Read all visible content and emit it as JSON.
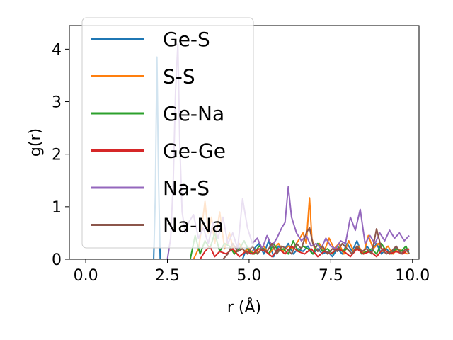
{
  "chart_data": {
    "type": "line",
    "xlabel": "r (Å)",
    "ylabel": "g(r)",
    "xlim": [
      -0.5,
      10.2
    ],
    "ylim": [
      0,
      4.45
    ],
    "xticks": [
      0.0,
      2.5,
      5.0,
      7.5,
      10.0
    ],
    "xtick_labels": [
      "0.0",
      "2.5",
      "5.0",
      "7.5",
      "10.0"
    ],
    "yticks": [
      0,
      1,
      2,
      3,
      4
    ],
    "ytick_labels": [
      "0",
      "1",
      "2",
      "3",
      "4"
    ],
    "grid": false,
    "legend_position": "upper-left",
    "series": [
      {
        "name": "Ge-S",
        "color": "#1f77b4",
        "x": [
          0,
          2.0,
          2.08,
          2.13,
          2.18,
          2.23,
          2.28,
          2.35,
          4.8,
          4.95,
          5.05,
          5.15,
          5.3,
          5.45,
          5.6,
          5.75,
          5.9,
          6.05,
          6.2,
          6.35,
          6.5,
          6.65,
          6.8,
          6.95,
          7.1,
          7.25,
          7.4,
          7.55,
          7.7,
          7.85,
          8.0,
          8.15,
          8.3,
          8.45,
          8.6,
          8.75,
          8.9,
          9.05,
          9.2,
          9.35,
          9.5,
          9.65,
          9.8,
          9.9
        ],
        "y": [
          0,
          0,
          0,
          1.2,
          3.85,
          1.5,
          0,
          0,
          0,
          0.25,
          0.1,
          0.2,
          0.3,
          0.1,
          0.35,
          0.05,
          0.25,
          0.15,
          0.3,
          0.1,
          0.2,
          0.15,
          0.25,
          0.1,
          0.2,
          0.1,
          0.15,
          0.05,
          0.2,
          0.1,
          0.3,
          0.15,
          0.35,
          0.1,
          0.25,
          0.15,
          0.3,
          0.1,
          0.2,
          0.1,
          0.25,
          0.1,
          0.2,
          0.15
        ]
      },
      {
        "name": "S-S",
        "color": "#ff7f0e",
        "x": [
          0,
          3.3,
          3.45,
          3.55,
          3.65,
          3.75,
          3.85,
          3.95,
          4.1,
          4.25,
          4.4,
          4.55,
          4.7,
          4.85,
          5.0,
          5.15,
          5.3,
          5.45,
          5.6,
          5.75,
          5.9,
          6.05,
          6.2,
          6.35,
          6.5,
          6.65,
          6.75,
          6.85,
          6.92,
          7.0,
          7.15,
          7.3,
          7.45,
          7.6,
          7.75,
          7.9,
          8.05,
          8.2,
          8.35,
          8.5,
          8.65,
          8.8,
          8.95,
          9.1,
          9.25,
          9.4,
          9.55,
          9.7,
          9.85
        ],
        "y": [
          0,
          0,
          0.2,
          0.6,
          1.1,
          0.5,
          0.8,
          0.3,
          0.9,
          0.2,
          0.5,
          0.1,
          0.3,
          0.15,
          0.2,
          0.1,
          0.15,
          0.25,
          0.1,
          0.2,
          0.3,
          0.15,
          0.25,
          0.2,
          0.35,
          0.5,
          0.3,
          1.17,
          0.4,
          0.2,
          0.3,
          0.15,
          0.4,
          0.2,
          0.3,
          0.1,
          0.35,
          0.15,
          0.25,
          0.1,
          0.45,
          0.2,
          0.3,
          0.15,
          0.25,
          0.1,
          0.2,
          0.15,
          0.1
        ]
      },
      {
        "name": "Ge-Na",
        "color": "#2ca02c",
        "x": [
          0,
          3.2,
          3.35,
          3.5,
          3.65,
          3.8,
          3.95,
          4.1,
          4.25,
          4.4,
          4.55,
          4.7,
          4.85,
          5.0,
          5.15,
          5.3,
          5.45,
          5.6,
          5.75,
          5.9,
          6.05,
          6.2,
          6.35,
          6.5,
          6.65,
          6.8,
          6.95,
          7.1,
          7.25,
          7.4,
          7.55,
          7.7,
          7.85,
          8.0,
          8.15,
          8.3,
          8.45,
          8.6,
          8.75,
          8.9,
          9.05,
          9.2,
          9.35,
          9.5,
          9.65,
          9.8,
          9.9
        ],
        "y": [
          0,
          0,
          0.45,
          0.1,
          0.35,
          0.2,
          0.5,
          0.15,
          0.3,
          0.25,
          0.1,
          0.2,
          0.35,
          0.15,
          0.1,
          0.25,
          0.2,
          0.1,
          0.3,
          0.15,
          0.2,
          0.1,
          0.35,
          0.15,
          0.25,
          0.2,
          0.1,
          0.3,
          0.15,
          0.2,
          0.1,
          0.25,
          0.15,
          0.2,
          0.1,
          0.25,
          0.1,
          0.15,
          0.2,
          0.1,
          0.3,
          0.15,
          0.1,
          0.2,
          0.15,
          0.25,
          0.1
        ]
      },
      {
        "name": "Ge-Ge",
        "color": "#d62728",
        "x": [
          0,
          3.5,
          3.65,
          3.8,
          3.95,
          4.1,
          4.3,
          4.5,
          4.7,
          4.9,
          5.1,
          5.3,
          5.5,
          5.7,
          5.9,
          6.1,
          6.3,
          6.5,
          6.7,
          6.9,
          7.1,
          7.3,
          7.5,
          7.7,
          7.9,
          8.1,
          8.3,
          8.5,
          8.7,
          8.9,
          9.1,
          9.3,
          9.5,
          9.7,
          9.9
        ],
        "y": [
          0,
          0,
          0.15,
          0.25,
          0.05,
          0.15,
          0.1,
          0.2,
          0.05,
          0.15,
          0.1,
          0.2,
          0.15,
          0.05,
          0.2,
          0.1,
          0.25,
          0.15,
          0.1,
          0.2,
          0.05,
          0.15,
          0.1,
          0.2,
          0.15,
          0.05,
          0.2,
          0.1,
          0.15,
          0.05,
          0.2,
          0.1,
          0.15,
          0.1,
          0.2
        ]
      },
      {
        "name": "Na-S",
        "color": "#9467bd",
        "x": [
          0,
          2.5,
          2.6,
          2.68,
          2.75,
          2.82,
          2.88,
          2.95,
          3.05,
          3.15,
          3.3,
          3.45,
          3.6,
          3.75,
          3.9,
          4.05,
          4.2,
          4.35,
          4.5,
          4.65,
          4.8,
          4.95,
          5.1,
          5.25,
          5.4,
          5.55,
          5.7,
          5.85,
          6.0,
          6.1,
          6.2,
          6.3,
          6.45,
          6.6,
          6.75,
          6.9,
          7.05,
          7.2,
          7.35,
          7.5,
          7.65,
          7.8,
          7.95,
          8.1,
          8.25,
          8.4,
          8.55,
          8.7,
          8.85,
          9.0,
          9.15,
          9.3,
          9.45,
          9.6,
          9.75,
          9.9
        ],
        "y": [
          0,
          0,
          0.4,
          1.5,
          3.2,
          4.1,
          2.2,
          0.9,
          0.5,
          0.7,
          0.85,
          0.4,
          0.6,
          0.3,
          0.7,
          0.4,
          0.8,
          0.3,
          0.5,
          0.2,
          1.15,
          0.6,
          0.3,
          0.4,
          0.2,
          0.45,
          0.25,
          0.4,
          0.6,
          0.7,
          1.38,
          0.8,
          0.5,
          0.35,
          0.45,
          0.25,
          0.3,
          0.2,
          0.4,
          0.25,
          0.2,
          0.35,
          0.3,
          0.8,
          0.55,
          0.95,
          0.3,
          0.45,
          0.3,
          0.5,
          0.35,
          0.55,
          0.4,
          0.5,
          0.35,
          0.45
        ]
      },
      {
        "name": "Na-Na",
        "color": "#8c564b",
        "x": [
          0,
          4.2,
          4.35,
          4.5,
          4.65,
          4.8,
          4.95,
          5.1,
          5.25,
          5.4,
          5.55,
          5.7,
          5.85,
          6.0,
          6.15,
          6.3,
          6.45,
          6.6,
          6.75,
          6.85,
          6.95,
          7.1,
          7.25,
          7.4,
          7.55,
          7.7,
          7.85,
          8.0,
          8.15,
          8.3,
          8.45,
          8.6,
          8.75,
          8.9,
          9.05,
          9.2,
          9.35,
          9.5,
          9.65,
          9.8,
          9.9
        ],
        "y": [
          0,
          0,
          0.1,
          0.3,
          0.15,
          0.2,
          0.1,
          0.25,
          0.1,
          0.2,
          0.15,
          0.3,
          0.1,
          0.25,
          0.2,
          0.1,
          0.3,
          0.2,
          0.5,
          0.6,
          0.3,
          0.15,
          0.25,
          0.1,
          0.2,
          0.15,
          0.3,
          0.2,
          0.1,
          0.25,
          0.15,
          0.2,
          0.1,
          0.58,
          0.2,
          0.1,
          0.15,
          0.25,
          0.1,
          0.2,
          0.1
        ]
      }
    ]
  }
}
